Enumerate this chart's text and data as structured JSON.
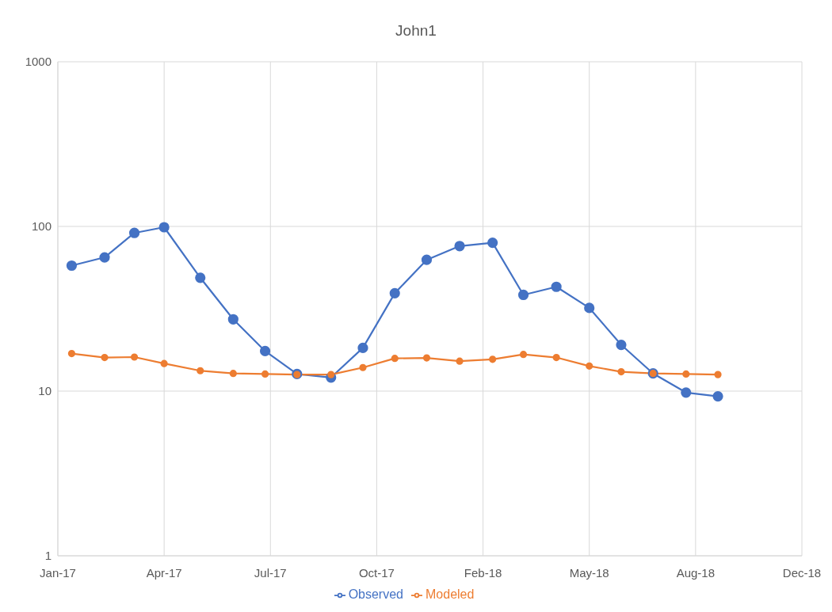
{
  "chart_data": {
    "type": "line",
    "title": "John1",
    "x": [
      "2017-01-14",
      "2017-02-14",
      "2017-03-14",
      "2017-04-11",
      "2017-05-15",
      "2017-06-15",
      "2017-07-15",
      "2017-08-14",
      "2017-09-15",
      "2017-10-15",
      "2017-11-14",
      "2017-12-14",
      "2018-01-14",
      "2018-02-14",
      "2018-03-15",
      "2018-04-15",
      "2018-05-16",
      "2018-06-15",
      "2018-07-15",
      "2018-08-15",
      "2018-09-14"
    ],
    "series": [
      {
        "name": "Observed",
        "color": "#4472c4",
        "values": [
          57.8,
          64.9,
          91.3,
          98.9,
          48.8,
          27.3,
          17.5,
          12.7,
          12.1,
          18.3,
          39.3,
          62.7,
          76.0,
          79.6,
          38.4,
          43.0,
          32.0,
          19.1,
          12.8,
          9.8,
          9.3
        ]
      },
      {
        "name": "Modeled",
        "color": "#ed7d31",
        "values": [
          16.9,
          16.0,
          16.1,
          14.7,
          13.3,
          12.8,
          12.7,
          12.6,
          12.6,
          13.9,
          15.8,
          15.9,
          15.2,
          15.6,
          16.7,
          16.0,
          14.2,
          13.1,
          12.8,
          12.7,
          12.6
        ]
      }
    ],
    "xlim": [
      "2017-01-01",
      "2018-12-02"
    ],
    "xticks": [
      {
        "value": "2017-01-01",
        "label": "Jan-17"
      },
      {
        "value": "2017-04-11",
        "label": "Apr-17"
      },
      {
        "value": "2017-07-20",
        "label": "Jul-17"
      },
      {
        "value": "2017-10-28",
        "label": "Oct-17"
      },
      {
        "value": "2018-02-05",
        "label": "Feb-18"
      },
      {
        "value": "2018-05-16",
        "label": "May-18"
      },
      {
        "value": "2018-08-24",
        "label": "Aug-18"
      },
      {
        "value": "2018-12-02",
        "label": "Dec-18"
      }
    ],
    "ylim": [
      1,
      1000
    ],
    "yticks": [
      1,
      10,
      100,
      1000
    ],
    "log": "y",
    "grid": true,
    "legend": "bottom",
    "marker": "circle",
    "line_style": "solid"
  }
}
